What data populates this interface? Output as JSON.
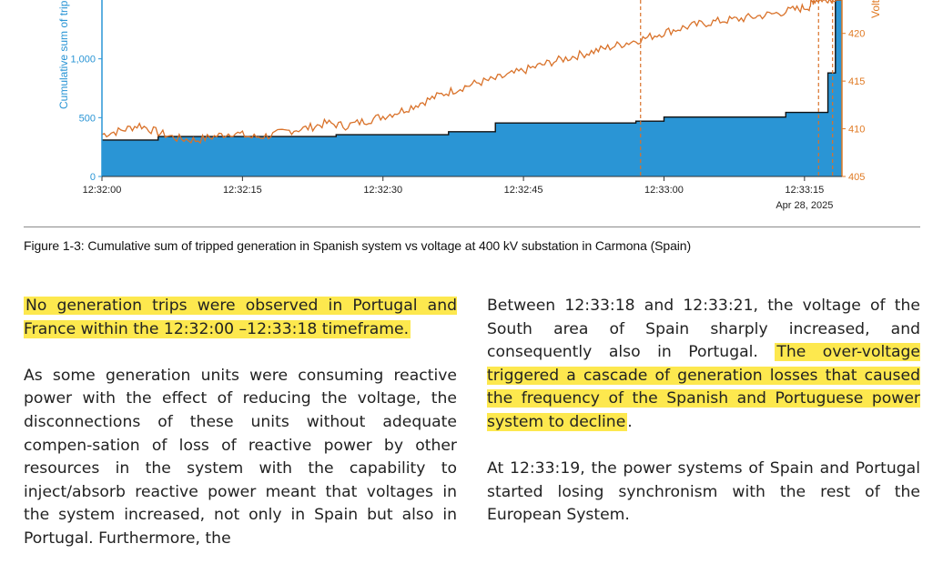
{
  "chart_data": {
    "type": "area",
    "y_left_label": "Cumulative sum of tripped",
    "y_right_label": "Volt",
    "x_ticks": [
      "12:32:00",
      "12:32:15",
      "12:32:30",
      "12:32:45",
      "12:33:00",
      "12:33:15"
    ],
    "x_date_label": "Apr 28, 2025",
    "y_left_ticks": [
      "0",
      "500",
      "1,000"
    ],
    "y_right_ticks": [
      "405",
      "410",
      "415",
      "420"
    ],
    "x_range_seconds": [
      0,
      79
    ],
    "y_left_range": [
      0,
      1500
    ],
    "y_right_range": [
      405,
      423.5
    ],
    "tripped_series": {
      "name": "Cumulative sum of tripped generation",
      "x": [
        0,
        6,
        25,
        37,
        42,
        57,
        60,
        73,
        77.5,
        78.3
      ],
      "y": [
        310,
        340,
        355,
        380,
        455,
        470,
        505,
        545,
        880,
        1500
      ]
    },
    "voltage_series": {
      "name": "Voltage at 400 kV substation in Carmona",
      "x": [
        0,
        2,
        4,
        6,
        8,
        10,
        12,
        14,
        16,
        18,
        20,
        22,
        24,
        26,
        28,
        30,
        32,
        34,
        36,
        38,
        40,
        42,
        44,
        46,
        48,
        50,
        52,
        54,
        56,
        58,
        60,
        62,
        64,
        66,
        68,
        70,
        72,
        74,
        75.5,
        76,
        77,
        78,
        79
      ],
      "y": [
        409.4,
        409.8,
        410.4,
        409.6,
        409,
        408.8,
        409.2,
        409.6,
        409.1,
        409.3,
        409.8,
        410.1,
        410.6,
        410.3,
        410.8,
        411.3,
        411.9,
        412.7,
        413.5,
        414.2,
        414.8,
        415.2,
        415.8,
        416.4,
        417,
        417.5,
        418,
        418.5,
        419,
        419.5,
        420.1,
        420.6,
        421,
        421.3,
        421.5,
        421.8,
        422.1,
        422.5,
        422.8,
        423.5,
        423.6,
        423.7,
        423.8
      ]
    },
    "event_markers_seconds": [
      57.5,
      76.5,
      78
    ]
  },
  "caption": "Figure 1-3: Cumulative sum of tripped generation in Spanish system vs voltage at 400 kV substation in Carmona (Spain)",
  "left_column": {
    "p1_highlight": "No generation trips were observed in Portugal and France within the 12:32:00 –12:33:18 timeframe.",
    "p2": "As some generation units were consuming reactive power with the effect of reducing the voltage, the disconnections of these units without adequate compen-sation of loss of reactive power by other resources in the system with the capability to inject/absorb reactive power meant that voltages in the system increased, not only in Spain but also in Portugal. Furthermore, the"
  },
  "right_column": {
    "p1_plain": "Between 12:33:18 and 12:33:21, the voltage of the South area of Spain sharply increased, and consequently also in Portugal. ",
    "p1_highlight": "The over-voltage triggered a cascade of generation losses that caused the frequency of the Spanish and Portuguese power system to decline",
    "p1_tail": ".",
    "p2": "At 12:33:19, the power systems of Spain and Portugal started losing synchronism with the rest of the European System."
  },
  "colors": {
    "area_fill": "#2a95d5",
    "voltage_line": "#d9722a",
    "left_axis": "#2a95d5",
    "right_axis": "#e07a24",
    "highlight": "#fde84e"
  }
}
